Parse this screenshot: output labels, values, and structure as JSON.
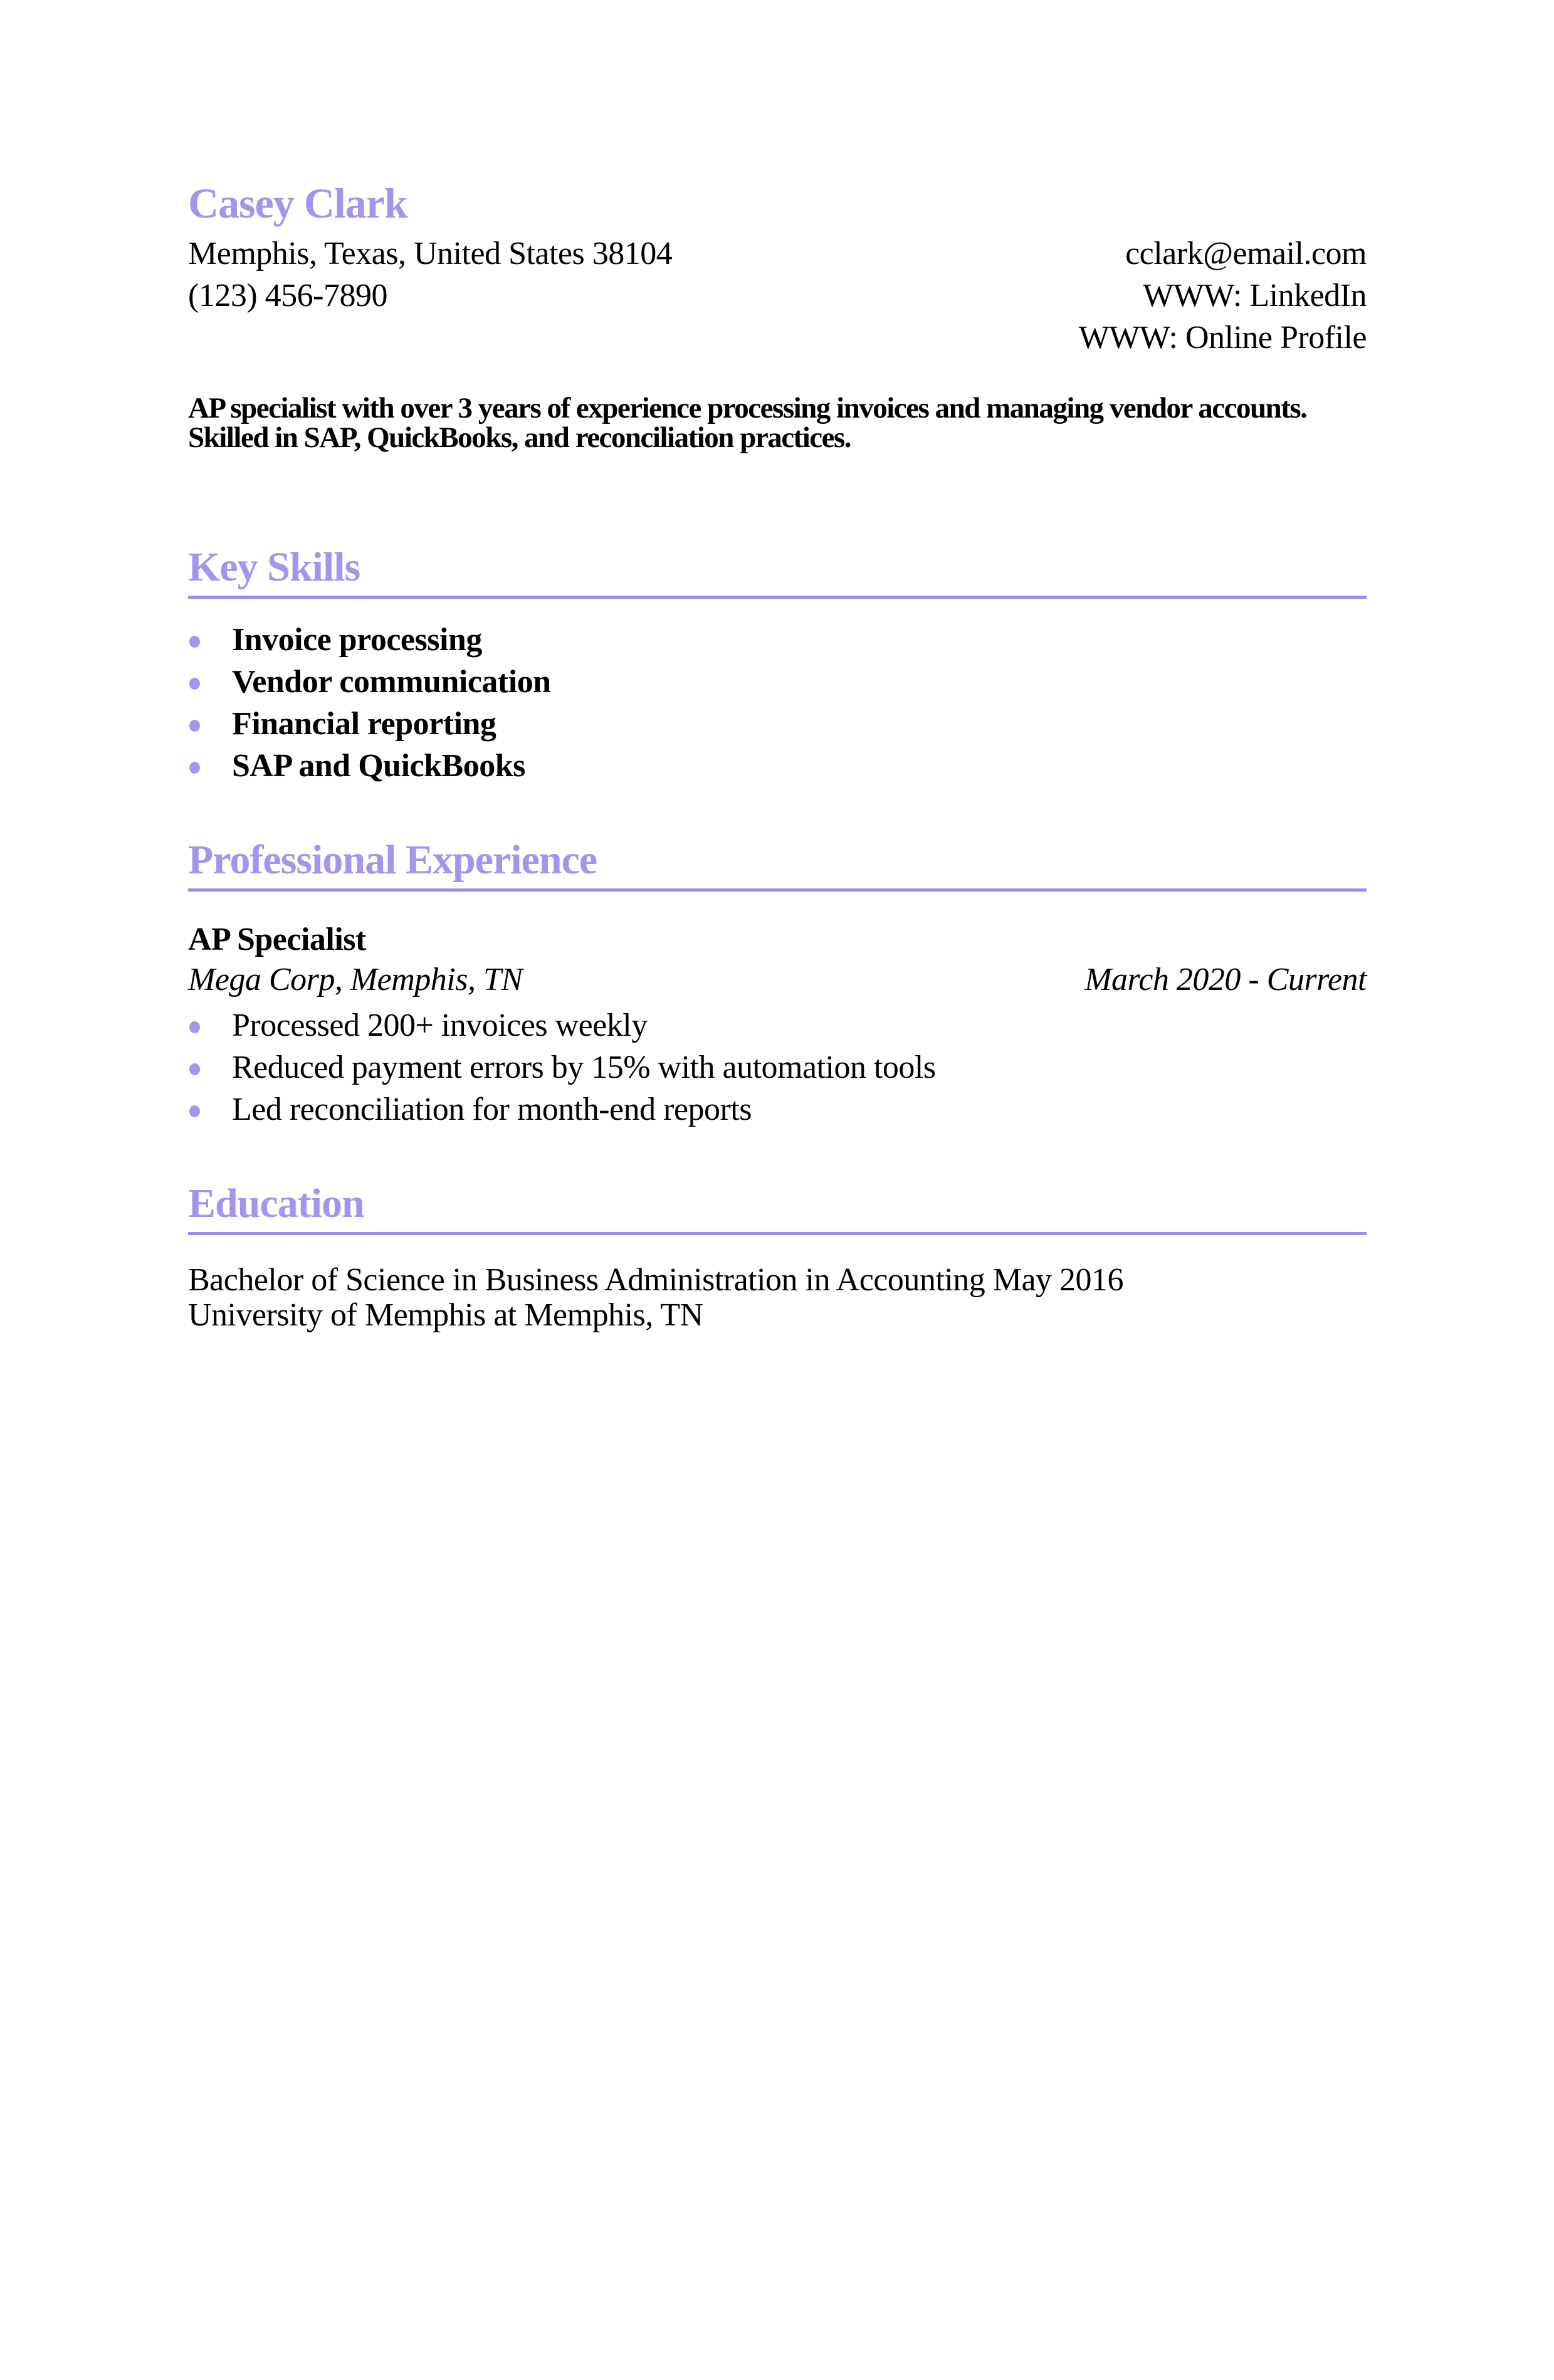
{
  "theme": {
    "accent": "#9E8EF0",
    "heading": "#A295EE",
    "rule": "#9C8CF0",
    "bullet": "#A495F0",
    "text": "#000000",
    "background": "#FFFFFF"
  },
  "header": {
    "name": "Casey Clark",
    "location": "Memphis, Texas, United States 38104",
    "phone": "(123) 456-7890",
    "email": "cclark@email.com",
    "www_linkedin": "WWW: LinkedIn",
    "www_profile": "WWW: Online Profile"
  },
  "summary": {
    "line1": "AP specialist with over 3 years of experience processing invoices and managing vendor accounts.",
    "line2": "Skilled in SAP, QuickBooks, and reconciliation practices."
  },
  "skills": {
    "title": "Key Skills",
    "items": [
      "Invoice processing",
      "Vendor communication",
      "Financial reporting",
      "SAP and QuickBooks"
    ]
  },
  "experience": {
    "title": "Professional Experience",
    "job_title": "AP Specialist",
    "company": "Mega Corp, Memphis, TN",
    "dates": "March 2020 - Current",
    "bullets": [
      "Processed 200+ invoices weekly",
      "Reduced payment errors by 15% with automation tools",
      "Led reconciliation for month-end reports"
    ]
  },
  "education": {
    "title": "Education",
    "degree": "Bachelor of Science in Business Administration in Accounting May 2016",
    "school": "University of Memphis at Memphis, TN"
  }
}
